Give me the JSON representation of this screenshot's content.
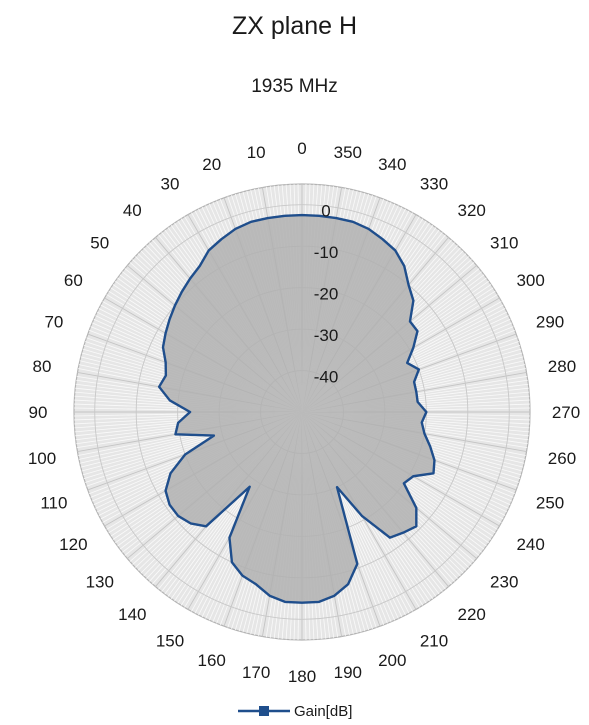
{
  "chart_data": {
    "type": "polar-line",
    "title": "ZX plane H",
    "subtitle": "1935 MHz",
    "angle_direction": "clockwise",
    "angle_zero": "top",
    "theta_ticks": [
      0,
      10,
      20,
      30,
      40,
      50,
      60,
      70,
      80,
      90,
      100,
      110,
      120,
      130,
      140,
      150,
      160,
      170,
      180,
      190,
      200,
      210,
      220,
      230,
      240,
      250,
      260,
      270,
      280,
      290,
      300,
      310,
      320,
      330,
      340,
      350
    ],
    "theta_tick_labels": [
      "0",
      "10",
      "20",
      "30",
      "40",
      "50",
      "60",
      "70",
      "80",
      "90",
      "100",
      "110",
      "120",
      "130",
      "140",
      "150",
      "160",
      "170",
      "180",
      "190",
      "200",
      "210",
      "220",
      "230",
      "240",
      "250",
      "260",
      "270",
      "280",
      "290",
      "300",
      "310",
      "320",
      "330",
      "340",
      "350"
    ],
    "r_ticks": [
      0,
      -10,
      -20,
      -30,
      -40
    ],
    "r_tick_labels": [
      "0",
      "-10",
      "-20",
      "-30",
      "-40"
    ],
    "rlim": [
      -50,
      5
    ],
    "grid": true,
    "legend": {
      "position": "bottom",
      "entries": [
        "Gain[dB]"
      ]
    },
    "series": [
      {
        "name": "Gain[dB]",
        "color": "#1f4e8c",
        "theta": [
          0,
          5,
          10,
          15,
          20,
          25,
          30,
          35,
          40,
          45,
          50,
          55,
          60,
          65,
          70,
          75,
          80,
          85,
          90,
          95,
          100,
          105,
          110,
          115,
          120,
          125,
          130,
          135,
          140,
          145,
          150,
          155,
          160,
          165,
          170,
          175,
          180,
          185,
          190,
          195,
          200,
          205,
          210,
          215,
          220,
          225,
          230,
          235,
          240,
          245,
          250,
          255,
          260,
          265,
          270,
          275,
          280,
          285,
          290,
          295,
          300,
          305,
          310,
          315,
          320,
          325,
          330,
          335,
          340,
          345,
          350,
          355
        ],
        "values": [
          -2.5,
          -2.5,
          -2.5,
          -2.5,
          -3,
          -4,
          -5,
          -7,
          -8,
          -9,
          -10,
          -11,
          -12,
          -13,
          -15,
          -16,
          -15,
          -18,
          -23,
          -20,
          -19,
          -28,
          -20,
          -15,
          -12,
          -11,
          -11,
          -12,
          -14,
          -28,
          -15,
          -10,
          -8,
          -7,
          -5,
          -4,
          -4,
          -4,
          -5,
          -7,
          -11,
          -30,
          -21,
          -13,
          -12,
          -11,
          -14,
          -20,
          -19,
          -15,
          -16,
          -18,
          -20,
          -21,
          -20,
          -22,
          -22,
          -22,
          -20,
          -22,
          -19,
          -16,
          -16,
          -12,
          -10,
          -7,
          -5,
          -4,
          -3,
          -2.5,
          -2.5,
          -2.5
        ]
      }
    ]
  }
}
